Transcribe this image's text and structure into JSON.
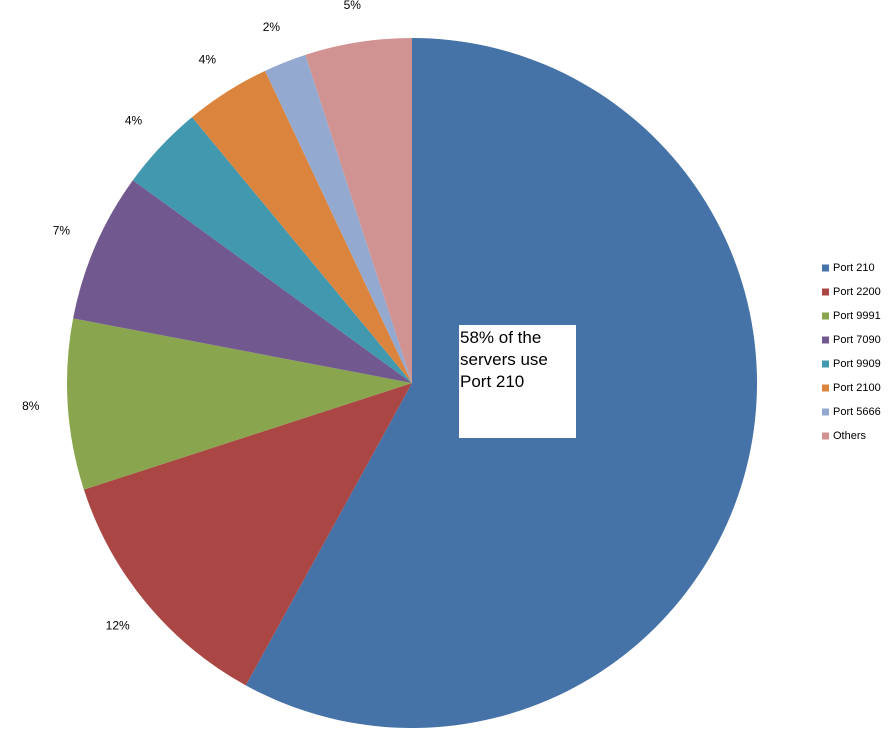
{
  "chart_data": {
    "type": "pie",
    "categories": [
      "Port 210",
      "Port 2200",
      "Port 9991",
      "Port 7090",
      "Port 9909",
      "Port 2100",
      "Port 5666",
      "Others"
    ],
    "values": [
      58,
      12,
      8,
      7,
      4,
      4,
      2,
      5
    ],
    "value_labels": [
      null,
      "12%",
      "8%",
      "7%",
      "4%",
      "4%",
      "2%",
      "5%"
    ],
    "colors": [
      "#4572a7",
      "#aa4643",
      "#89a54e",
      "#71588f",
      "#4198af",
      "#db843d",
      "#93a9cf",
      "#d19392"
    ],
    "annotation": "58% of the servers use Port 210",
    "legend": "right"
  }
}
